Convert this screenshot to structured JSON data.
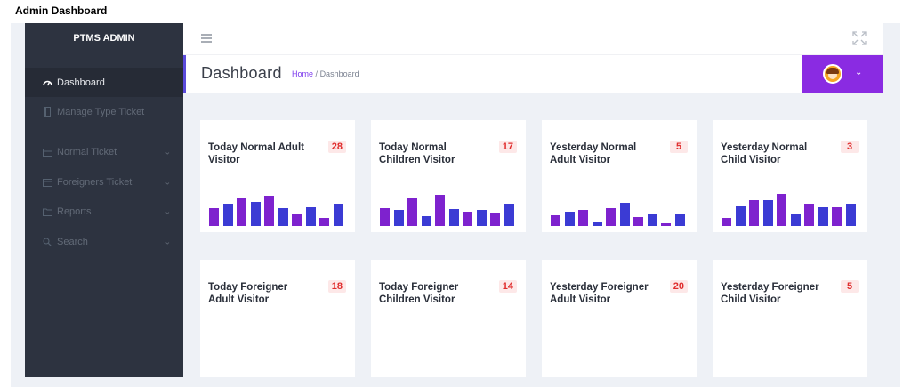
{
  "document": {
    "title": "Admin Dashboard"
  },
  "sidebar": {
    "brand": "PTMS ADMIN",
    "items": [
      {
        "label": "Dashboard",
        "icon": "gauge-icon",
        "active": true,
        "has_submenu": false
      },
      {
        "label": "Manage Type Ticket",
        "icon": "book-icon",
        "active": false,
        "has_submenu": false
      },
      {
        "label": "Normal Ticket",
        "icon": "calendar-icon",
        "active": false,
        "has_submenu": true
      },
      {
        "label": "Foreigners Ticket",
        "icon": "calendar-icon",
        "active": false,
        "has_submenu": true
      },
      {
        "label": "Reports",
        "icon": "folder-icon",
        "active": false,
        "has_submenu": true
      },
      {
        "label": "Search",
        "icon": "search-icon",
        "active": false,
        "has_submenu": true
      }
    ]
  },
  "topbar": {
    "menu_icon": "hamburger-icon",
    "fullscreen_icon": "expand-icon"
  },
  "header": {
    "title": "Dashboard",
    "breadcrumb": {
      "home": "Home",
      "separator": "/",
      "current": "Dashboard"
    },
    "user_menu": {
      "avatar_icon": "avatar-icon",
      "chevron_icon": "chevron-down-icon"
    }
  },
  "stats": [
    {
      "title": "Today Normal Adult Visitor",
      "count": "28",
      "sparkline": [
        0.5,
        0.62,
        0.8,
        0.68,
        0.85,
        0.5,
        0.36,
        0.52,
        0.22,
        0.62
      ]
    },
    {
      "title": "Today Normal Children Visitor",
      "count": "17",
      "sparkline": [
        0.5,
        0.45,
        0.78,
        0.28,
        0.88,
        0.48,
        0.4,
        0.45,
        0.38,
        0.62
      ]
    },
    {
      "title": "Yesterday Normal Adult Visitor",
      "count": "5",
      "sparkline": [
        0.3,
        0.4,
        0.45,
        0.1,
        0.5,
        0.65,
        0.25,
        0.32,
        0.08,
        0.32
      ]
    },
    {
      "title": "Yesterday Normal Child Visitor",
      "count": "3",
      "sparkline": [
        0.22,
        0.58,
        0.72,
        0.72,
        0.9,
        0.32,
        0.62,
        0.52,
        0.52,
        0.62
      ]
    },
    {
      "title": "Today Foreigner Adult Visitor",
      "count": "18"
    },
    {
      "title": "Today Foreigner Children Visitor",
      "count": "14"
    },
    {
      "title": "Yesterday Foreigner Adult Visitor",
      "count": "20"
    },
    {
      "title": "Yesterday Foreigner Child Visitor",
      "count": "5"
    }
  ],
  "colors": {
    "sidebar": "#2d3340",
    "sidebar_active": "#262b36",
    "accent": "#8a2be2",
    "spark_purple": "#7e22ce",
    "spark_blue": "#3b3bd4",
    "count_text": "#e02d2d",
    "count_bg": "#fde8e8",
    "background": "#eef1f6"
  }
}
